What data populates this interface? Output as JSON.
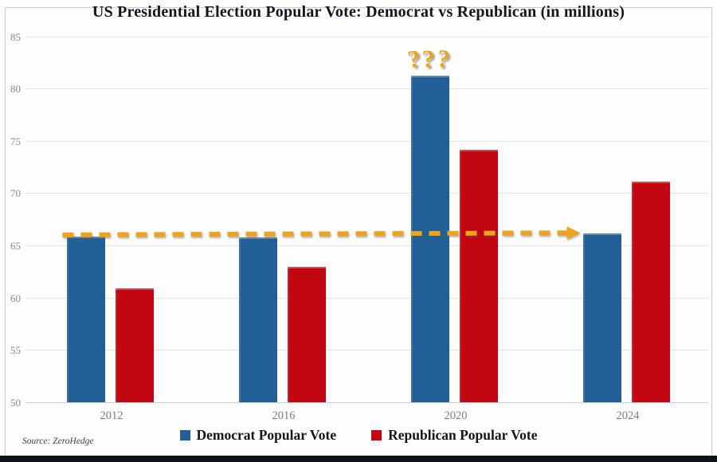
{
  "source": "Source: ZeroHedge",
  "chart_data": {
    "type": "bar",
    "title": "US Presidential Election Popular Vote: Democrat vs Republican (in millions)",
    "categories": [
      "2012",
      "2016",
      "2020",
      "2024"
    ],
    "series": [
      {
        "name": "Democrat Popular Vote",
        "color": "#235F97",
        "values": [
          65.9,
          65.8,
          81.3,
          66.2
        ]
      },
      {
        "name": "Republican Popular Vote",
        "color": "#C20611",
        "values": [
          60.9,
          63.0,
          74.2,
          71.1
        ]
      }
    ],
    "xlabel": "",
    "ylabel": "",
    "ylim": [
      50,
      85
    ],
    "yticks": [
      50,
      55,
      60,
      65,
      70,
      75,
      80,
      85
    ],
    "grid": true,
    "legend_position": "bottom",
    "annotations": {
      "question_marks": {
        "text": "???",
        "above_category": "2020",
        "series": "Democrat Popular Vote",
        "color": "#EFA31C"
      },
      "dashed_arrow": {
        "style": "dashed",
        "direction": "right",
        "from_category": "2012",
        "to_category": "2024",
        "at_value": 66.2,
        "color": "#EFA31C"
      }
    }
  },
  "colors": {
    "democrat": "#235F97",
    "republican": "#C20611",
    "accent_amber": "#EFA31C",
    "gridline": "#E2E2E2",
    "axis_line": "#CDCDCD",
    "tick_label": "#8A8A8A",
    "frame_border": "#CCCCCC",
    "bottom_strip": "#0F1118",
    "title_text": "#15151E"
  }
}
